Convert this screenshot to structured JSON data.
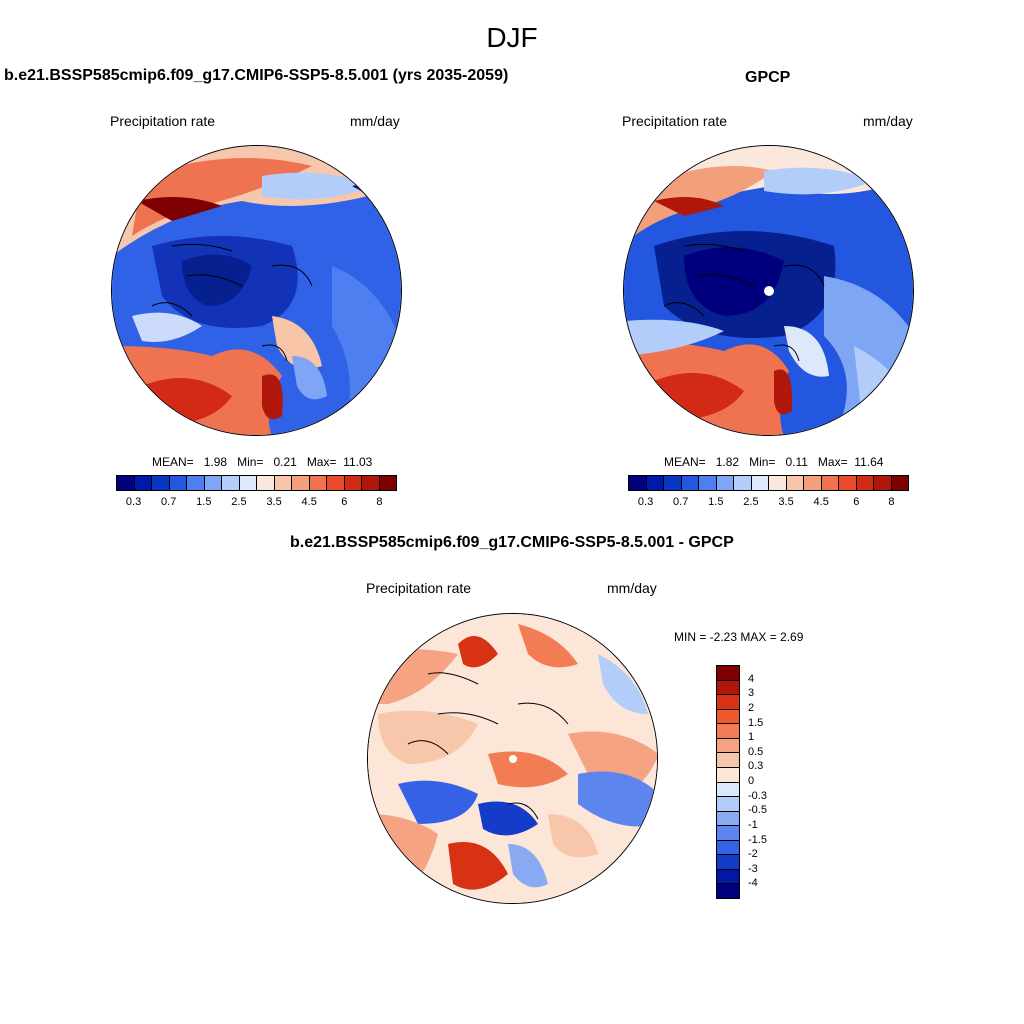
{
  "main_title": "DJF",
  "panels": {
    "left": {
      "title": "b.e21.BSSP585cmip6.f09_g17.CMIP6-SSP5-8.5.001 (yrs 2035-2059)",
      "var_label": "Precipitation rate",
      "units": "mm/day",
      "mean_label": "MEAN=",
      "mean": "1.98",
      "min_label": "Min=",
      "min": "0.21",
      "max_label": "Max=",
      "max": "11.03"
    },
    "right": {
      "title": "GPCP",
      "var_label": "Precipitation rate",
      "units": "mm/day",
      "mean_label": "MEAN=",
      "mean": "1.82",
      "min_label": "Min=",
      "min": "0.11",
      "max_label": "Max=",
      "max": "11.64"
    },
    "diff": {
      "title": "b.e21.BSSP585cmip6.f09_g17.CMIP6-SSP5-8.5.001 - GPCP",
      "var_label": "Precipitation rate",
      "units": "mm/day",
      "minmax_text": "MIN =  -2.23 MAX =   2.69"
    }
  },
  "colorbars": {
    "abs": {
      "colors": [
        "#00007f",
        "#0018a8",
        "#0a36c8",
        "#2457e0",
        "#4f7ef0",
        "#7fa5f5",
        "#b3cdfa",
        "#dde9fb",
        "#fbe8dc",
        "#f8c5a8",
        "#f49f7c",
        "#ef7350",
        "#e84a2a",
        "#d22a14",
        "#b0160a",
        "#7f0000"
      ],
      "labels": [
        "0.3",
        "0.7",
        "1.5",
        "2.5",
        "3.5",
        "4.5",
        "6",
        "8"
      ]
    },
    "diff": {
      "colors": [
        "#7f0000",
        "#b0160a",
        "#d83214",
        "#ef5a2c",
        "#f27d55",
        "#f5a383",
        "#f8c7ab",
        "#fbe6d8",
        "#dce8fb",
        "#b3cdfa",
        "#89aaf3",
        "#5d85ee",
        "#3561e4",
        "#143cc8",
        "#0018a8",
        "#00007f"
      ],
      "labels": [
        "4",
        "3",
        "2",
        "1.5",
        "1",
        "0.5",
        "0.3",
        "0",
        "-0.3",
        "-0.5",
        "-1",
        "-1.5",
        "-2",
        "-3",
        "-4"
      ]
    }
  }
}
